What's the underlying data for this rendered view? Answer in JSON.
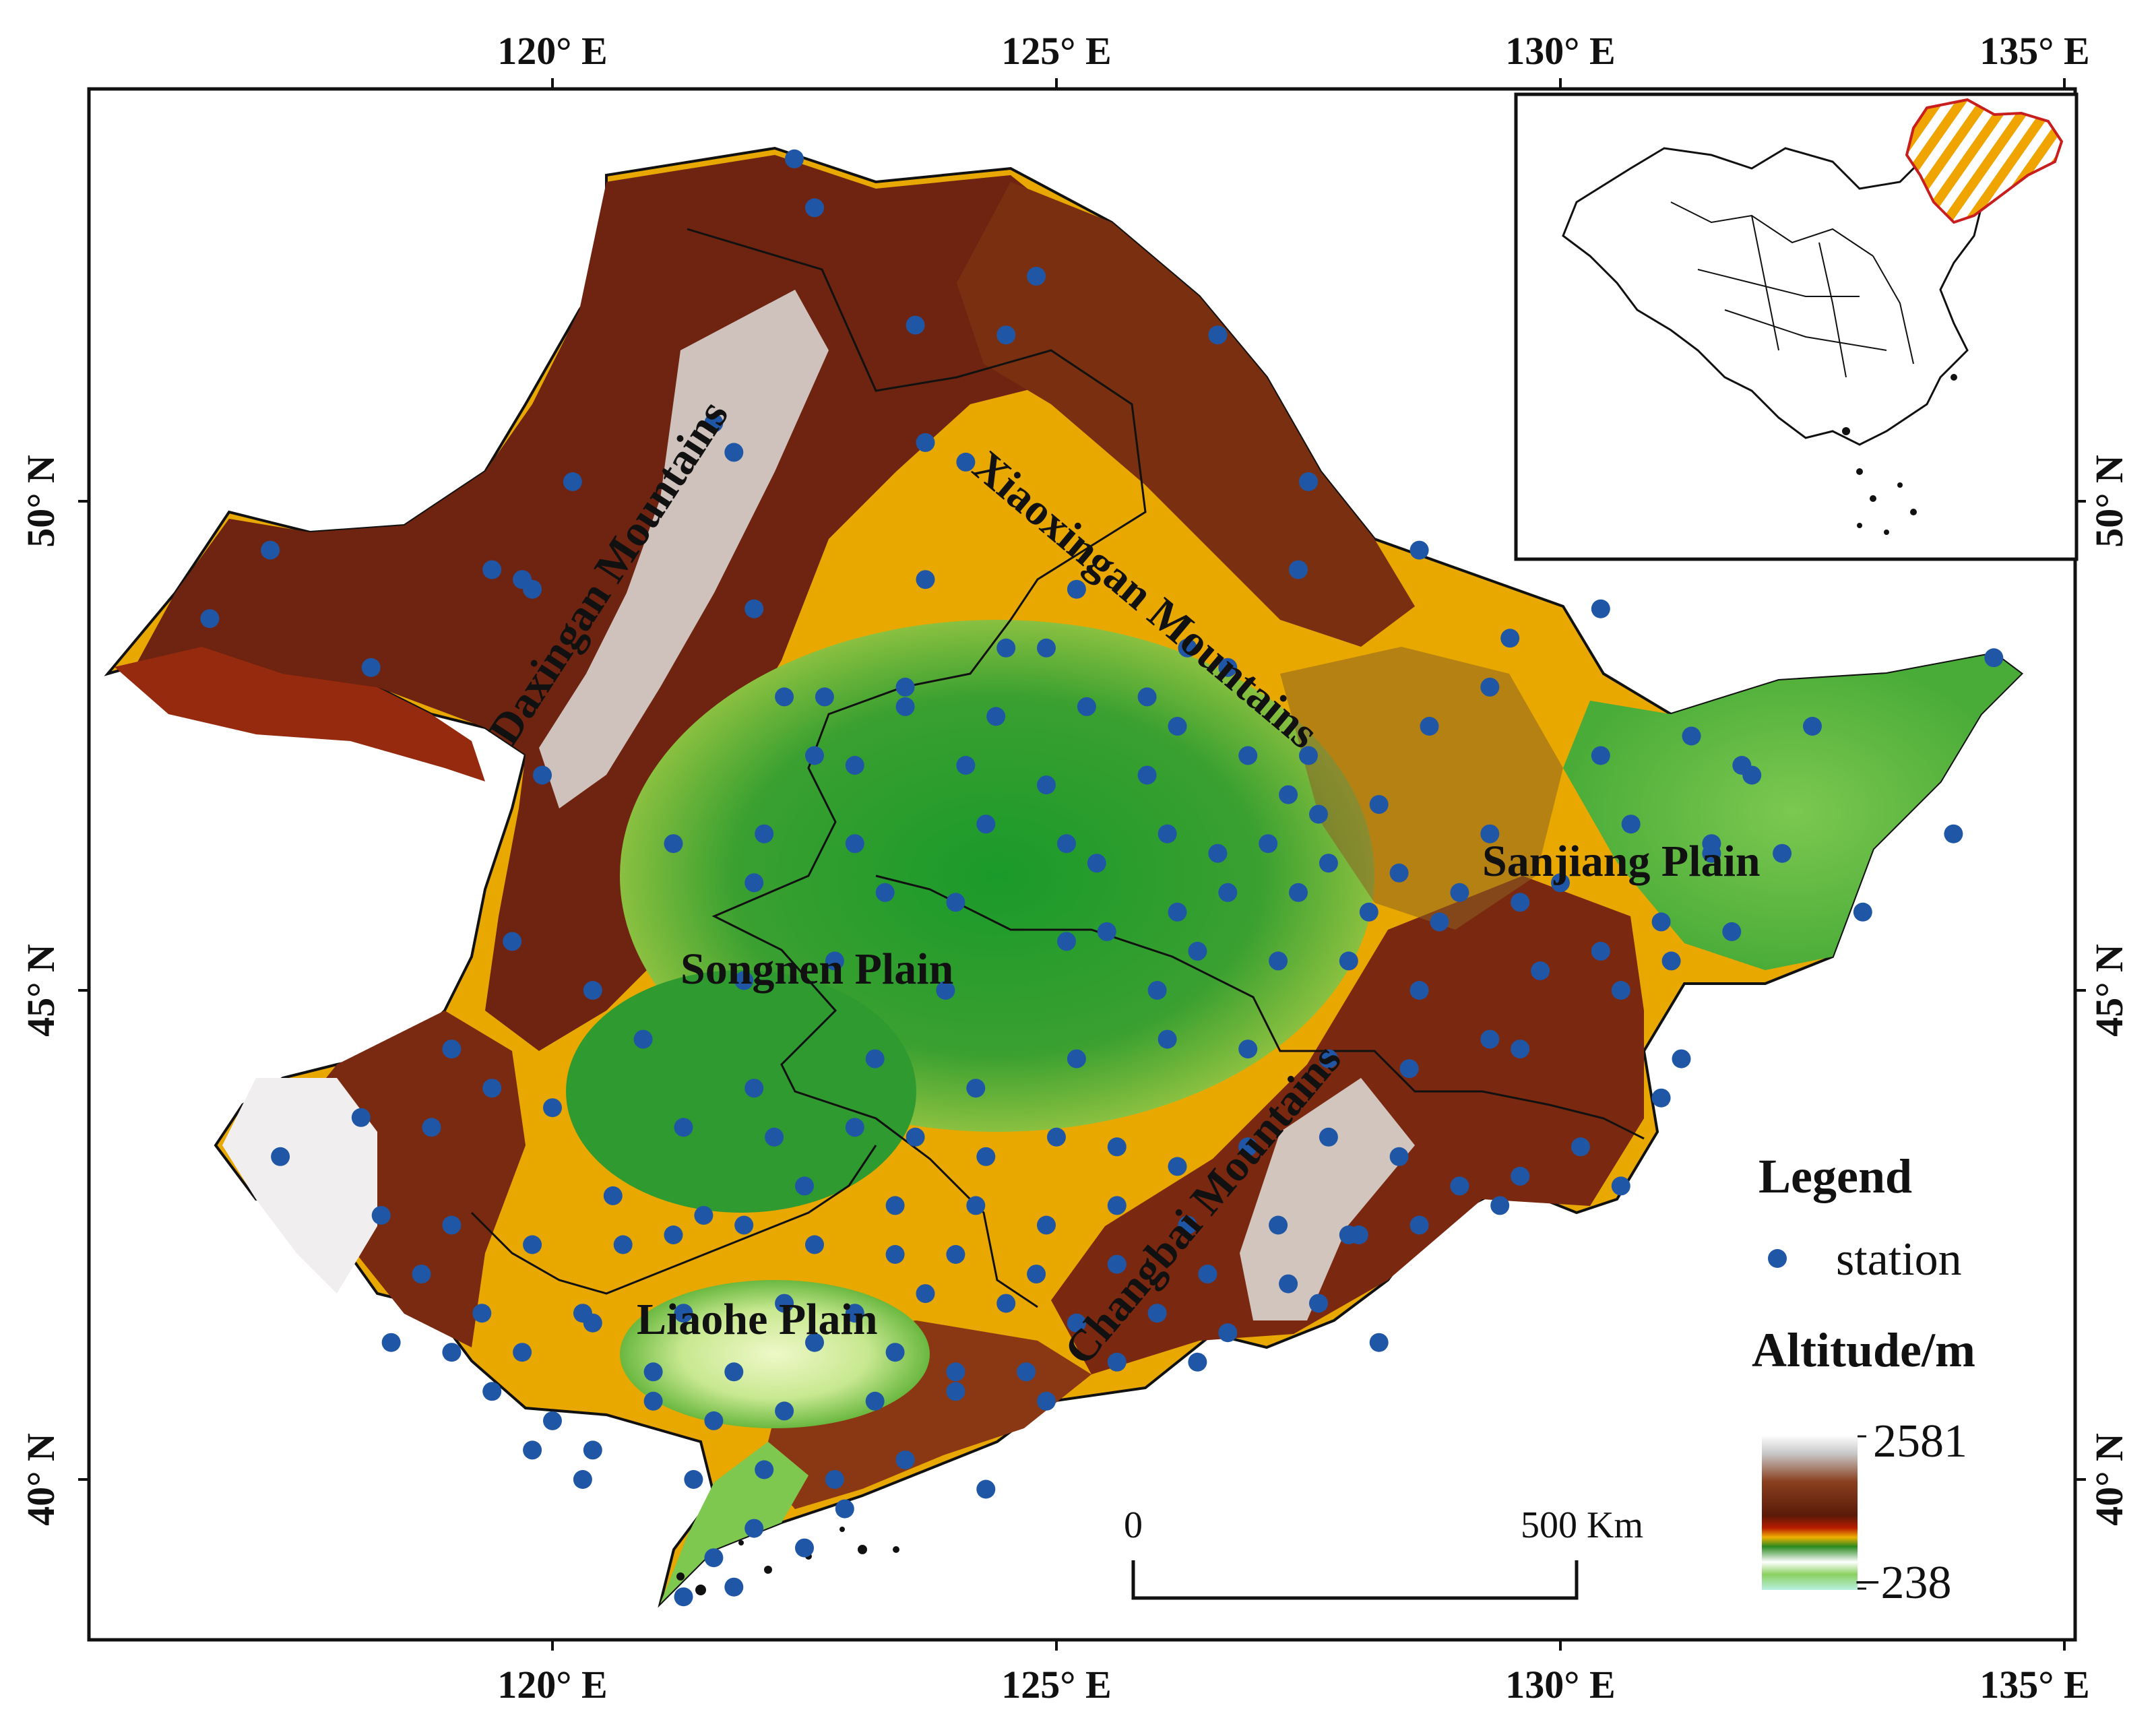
{
  "axes": {
    "lon_ticks": [
      {
        "lon": 120,
        "label": "120° E"
      },
      {
        "lon": 125,
        "label": "125° E"
      },
      {
        "lon": 130,
        "label": "130° E"
      },
      {
        "lon": 135,
        "label": "135° E"
      }
    ],
    "lat_ticks": [
      {
        "lat": 50,
        "label": "50° N"
      },
      {
        "lat": 45,
        "label": "45° N"
      },
      {
        "lat": 40,
        "label": "40° N"
      }
    ]
  },
  "regions": {
    "daxingan": "Daxingan Mountains",
    "xiaoxingan": "Xiaoxingan Mountains",
    "sanjiang": "Sanjiang Plain",
    "songnen": "Songnen Plain",
    "changbai": "Changbai Mountains",
    "liaohe": "Liaohe Plain"
  },
  "legend": {
    "title": "Legend",
    "station_label": "station",
    "altitude_title": "Altitude/m",
    "max_label": "2581",
    "min_label": "−238"
  },
  "scale_bar": {
    "zero_label": "0",
    "end_label": "500 Km"
  },
  "colors": {
    "station": "#1f57a6",
    "inset_hatch_a": "#f0a400",
    "inset_hatch_b": "#ffffff",
    "inset_outline": "#c81e1e",
    "elev_high": "#ffffff",
    "elev_mid_high": "#6e2a0f",
    "elev_mid": "#e0a000",
    "elev_low": "#1e8c28",
    "elev_lowest": "#d8f0b8"
  },
  "stations": [
    [
      122.4,
      53.5
    ],
    [
      122.6,
      53.0
    ],
    [
      124.8,
      52.3
    ],
    [
      123.6,
      51.8
    ],
    [
      126.6,
      51.7
    ],
    [
      124.5,
      51.7
    ],
    [
      121.6,
      50.8
    ],
    [
      123.7,
      50.6
    ],
    [
      124.1,
      50.4
    ],
    [
      120.2,
      50.2
    ],
    [
      127.5,
      50.2
    ],
    [
      121.8,
      50.5
    ],
    [
      117.2,
      49.5
    ],
    [
      119.4,
      49.3
    ],
    [
      119.7,
      49.2
    ],
    [
      119.8,
      49.1
    ],
    [
      123.7,
      49.2
    ],
    [
      125.2,
      49.1
    ],
    [
      116.6,
      48.8
    ],
    [
      118.2,
      48.3
    ],
    [
      122.0,
      48.9
    ],
    [
      127.4,
      49.3
    ],
    [
      128.6,
      49.5
    ],
    [
      130.4,
      48.9
    ],
    [
      134.3,
      48.4
    ],
    [
      119.9,
      47.2
    ],
    [
      122.7,
      48.0
    ],
    [
      123.5,
      48.1
    ],
    [
      124.5,
      48.5
    ],
    [
      124.9,
      48.5
    ],
    [
      126.3,
      48.5
    ],
    [
      126.7,
      48.3
    ],
    [
      129.5,
      48.6
    ],
    [
      129.3,
      48.1
    ],
    [
      122.3,
      48.0
    ],
    [
      123.5,
      47.9
    ],
    [
      124.4,
      47.8
    ],
    [
      125.3,
      47.9
    ],
    [
      125.9,
      48.0
    ],
    [
      126.2,
      47.7
    ],
    [
      127.5,
      47.4
    ],
    [
      128.7,
      47.7
    ],
    [
      130.4,
      47.4
    ],
    [
      131.3,
      47.6
    ],
    [
      132.5,
      47.7
    ],
    [
      131.8,
      47.3
    ],
    [
      131.9,
      47.2
    ],
    [
      122.6,
      47.4
    ],
    [
      123.0,
      47.3
    ],
    [
      124.1,
      47.3
    ],
    [
      124.9,
      47.1
    ],
    [
      125.9,
      47.2
    ],
    [
      126.9,
      47.4
    ],
    [
      127.3,
      47.0
    ],
    [
      127.6,
      46.8
    ],
    [
      128.2,
      46.9
    ],
    [
      129.3,
      46.6
    ],
    [
      130.7,
      46.7
    ],
    [
      131.5,
      46.5
    ],
    [
      132.2,
      46.4
    ],
    [
      133.9,
      46.6
    ],
    [
      121.2,
      46.5
    ],
    [
      122.1,
      46.6
    ],
    [
      123.0,
      46.5
    ],
    [
      124.3,
      46.7
    ],
    [
      125.1,
      46.5
    ],
    [
      125.4,
      46.3
    ],
    [
      126.1,
      46.6
    ],
    [
      126.6,
      46.4
    ],
    [
      127.1,
      46.5
    ],
    [
      127.7,
      46.3
    ],
    [
      128.4,
      46.2
    ],
    [
      129.0,
      46.0
    ],
    [
      130.0,
      46.1
    ],
    [
      131.5,
      46.4
    ],
    [
      133.0,
      45.8
    ],
    [
      122.0,
      46.1
    ],
    [
      123.3,
      46.0
    ],
    [
      124.0,
      45.9
    ],
    [
      125.5,
      45.6
    ],
    [
      126.2,
      45.8
    ],
    [
      126.7,
      46.0
    ],
    [
      127.4,
      46.0
    ],
    [
      128.1,
      45.8
    ],
    [
      128.8,
      45.7
    ],
    [
      129.6,
      45.9
    ],
    [
      130.4,
      45.4
    ],
    [
      131.0,
      45.7
    ],
    [
      131.7,
      45.6
    ],
    [
      119.6,
      45.5
    ],
    [
      120.4,
      45.0
    ],
    [
      121.9,
      45.1
    ],
    [
      122.8,
      45.3
    ],
    [
      123.9,
      45.0
    ],
    [
      125.1,
      45.5
    ],
    [
      126.0,
      45.0
    ],
    [
      126.4,
      45.4
    ],
    [
      127.2,
      45.3
    ],
    [
      127.9,
      45.3
    ],
    [
      128.6,
      45.0
    ],
    [
      129.8,
      45.2
    ],
    [
      130.6,
      45.0
    ],
    [
      131.1,
      45.3
    ],
    [
      119.0,
      44.4
    ],
    [
      120.9,
      44.5
    ],
    [
      122.0,
      44.0
    ],
    [
      123.2,
      44.3
    ],
    [
      124.2,
      44.0
    ],
    [
      125.2,
      44.3
    ],
    [
      126.1,
      44.5
    ],
    [
      126.9,
      44.4
    ],
    [
      127.7,
      44.3
    ],
    [
      128.5,
      44.2
    ],
    [
      129.3,
      44.5
    ],
    [
      129.6,
      44.4
    ],
    [
      131.2,
      44.3
    ],
    [
      131.0,
      43.9
    ],
    [
      117.3,
      43.3
    ],
    [
      118.1,
      43.7
    ],
    [
      118.8,
      43.6
    ],
    [
      119.4,
      44.0
    ],
    [
      120.0,
      43.8
    ],
    [
      121.3,
      43.6
    ],
    [
      122.2,
      43.5
    ],
    [
      123.0,
      43.6
    ],
    [
      123.6,
      43.5
    ],
    [
      124.3,
      43.3
    ],
    [
      125.0,
      43.5
    ],
    [
      125.6,
      43.4
    ],
    [
      126.2,
      43.2
    ],
    [
      126.9,
      43.4
    ],
    [
      127.7,
      43.5
    ],
    [
      128.4,
      43.3
    ],
    [
      129.0,
      43.0
    ],
    [
      129.6,
      43.1
    ],
    [
      130.2,
      43.4
    ],
    [
      130.6,
      43.0
    ],
    [
      120.6,
      42.9
    ],
    [
      121.5,
      42.7
    ],
    [
      122.5,
      43.0
    ],
    [
      123.4,
      42.8
    ],
    [
      124.2,
      42.8
    ],
    [
      124.9,
      42.6
    ],
    [
      125.6,
      42.8
    ],
    [
      126.3,
      42.6
    ],
    [
      127.2,
      42.6
    ],
    [
      127.9,
      42.5
    ],
    [
      128.6,
      42.6
    ],
    [
      129.4,
      42.8
    ],
    [
      118.3,
      42.7
    ],
    [
      119.0,
      42.6
    ],
    [
      119.8,
      42.4
    ],
    [
      120.7,
      42.4
    ],
    [
      121.2,
      42.5
    ],
    [
      121.9,
      42.6
    ],
    [
      122.6,
      42.4
    ],
    [
      123.4,
      42.3
    ],
    [
      124.0,
      42.3
    ],
    [
      124.8,
      42.1
    ],
    [
      125.6,
      42.2
    ],
    [
      126.5,
      42.1
    ],
    [
      127.3,
      42.0
    ],
    [
      128.0,
      42.5
    ],
    [
      118.7,
      42.1
    ],
    [
      119.3,
      41.7
    ],
    [
      120.3,
      41.7
    ],
    [
      121.3,
      41.7
    ],
    [
      122.3,
      41.8
    ],
    [
      123.0,
      41.7
    ],
    [
      123.7,
      41.9
    ],
    [
      124.5,
      41.8
    ],
    [
      125.2,
      41.6
    ],
    [
      126.0,
      41.7
    ],
    [
      126.7,
      41.5
    ],
    [
      127.6,
      41.8
    ],
    [
      128.2,
      41.4
    ],
    [
      118.4,
      41.4
    ],
    [
      119.0,
      41.3
    ],
    [
      119.7,
      41.3
    ],
    [
      120.4,
      41.6
    ],
    [
      121.0,
      41.1
    ],
    [
      121.8,
      41.1
    ],
    [
      122.6,
      41.4
    ],
    [
      123.4,
      41.3
    ],
    [
      124.0,
      41.1
    ],
    [
      124.7,
      41.1
    ],
    [
      125.6,
      41.2
    ],
    [
      126.4,
      41.2
    ],
    [
      119.4,
      40.9
    ],
    [
      120.0,
      40.6
    ],
    [
      121.0,
      40.8
    ],
    [
      121.6,
      40.6
    ],
    [
      122.3,
      40.7
    ],
    [
      123.2,
      40.8
    ],
    [
      124.0,
      40.9
    ],
    [
      124.9,
      40.8
    ],
    [
      119.8,
      40.3
    ],
    [
      120.4,
      40.3
    ],
    [
      121.4,
      40.0
    ],
    [
      122.1,
      40.1
    ],
    [
      122.8,
      40.0
    ],
    [
      123.5,
      40.2
    ],
    [
      124.3,
      39.9
    ],
    [
      120.3,
      40.0
    ],
    [
      121.6,
      39.2
    ],
    [
      122.0,
      39.5
    ],
    [
      122.5,
      39.3
    ],
    [
      121.8,
      38.9
    ],
    [
      121.3,
      38.8
    ],
    [
      122.9,
      39.7
    ]
  ]
}
